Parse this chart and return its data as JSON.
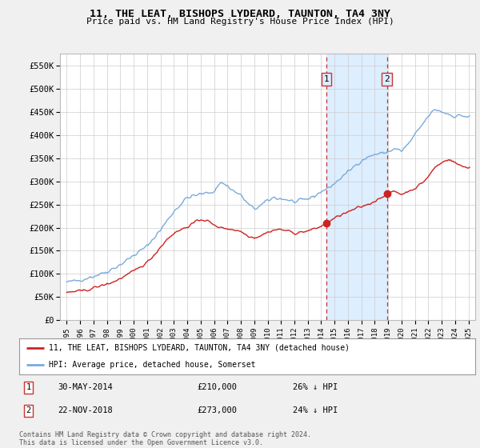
{
  "title": "11, THE LEAT, BISHOPS LYDEARD, TAUNTON, TA4 3NY",
  "subtitle": "Price paid vs. HM Land Registry's House Price Index (HPI)",
  "hpi_color": "#7aaadd",
  "property_color": "#cc2222",
  "vline_color": "#cc3333",
  "highlight_color": "#ddeeff",
  "legend_property": "11, THE LEAT, BISHOPS LYDEARD, TAUNTON, TA4 3NY (detached house)",
  "legend_hpi": "HPI: Average price, detached house, Somerset",
  "note1_label": "1",
  "note1_date": "30-MAY-2014",
  "note1_price": "£210,000",
  "note1_hpi": "26% ↓ HPI",
  "note2_label": "2",
  "note2_date": "22-NOV-2018",
  "note2_price": "£273,000",
  "note2_hpi": "24% ↓ HPI",
  "footer": "Contains HM Land Registry data © Crown copyright and database right 2024.\nThis data is licensed under the Open Government Licence v3.0.",
  "ylim": [
    0,
    575000
  ],
  "xlim_start": 1994.5,
  "xlim_end": 2025.5,
  "yticks": [
    0,
    50000,
    100000,
    150000,
    200000,
    250000,
    300000,
    350000,
    400000,
    450000,
    500000,
    550000
  ],
  "ytick_labels": [
    "£0",
    "£50K",
    "£100K",
    "£150K",
    "£200K",
    "£250K",
    "£300K",
    "£350K",
    "£400K",
    "£450K",
    "£500K",
    "£550K"
  ],
  "xticks": [
    1995,
    1996,
    1997,
    1998,
    1999,
    2000,
    2001,
    2002,
    2003,
    2004,
    2005,
    2006,
    2007,
    2008,
    2009,
    2010,
    2011,
    2012,
    2013,
    2014,
    2015,
    2016,
    2017,
    2018,
    2019,
    2020,
    2021,
    2022,
    2023,
    2024,
    2025
  ],
  "bg_color": "#f0f0f0",
  "plot_bg_color": "#ffffff",
  "sale1_year": 2014.41,
  "sale1_value": 210000,
  "sale2_year": 2018.9,
  "sale2_value": 273000,
  "vline1_year": 2014.41,
  "vline2_year": 2018.9
}
